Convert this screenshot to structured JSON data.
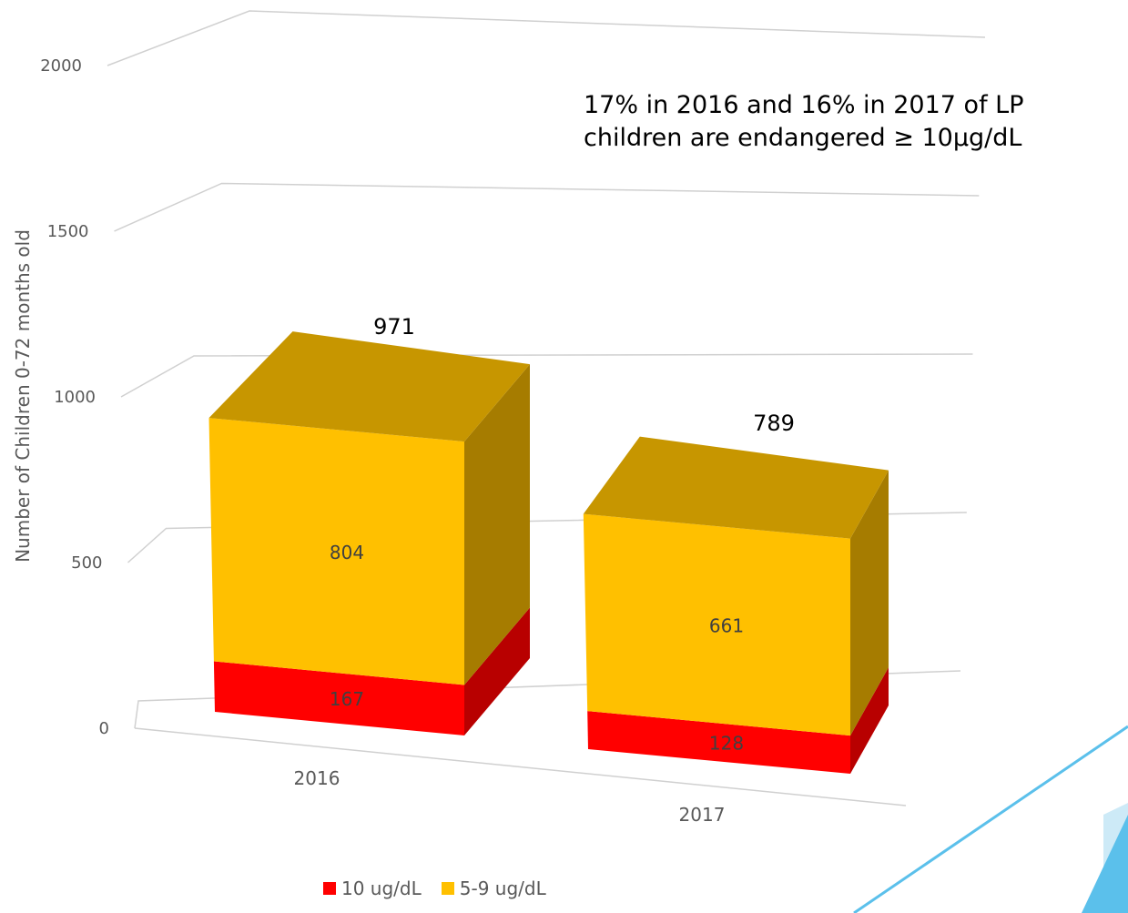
{
  "chart_data": {
    "type": "bar",
    "stacked": true,
    "three_d": true,
    "categories": [
      "2016",
      "2017"
    ],
    "series": [
      {
        "name": "10 ug/dL",
        "values": [
          167,
          128
        ],
        "color": "#ff0000"
      },
      {
        "name": "5-9 ug/dL",
        "values": [
          804,
          661
        ],
        "color": "#ffc000"
      }
    ],
    "totals": [
      971,
      789
    ],
    "ylabel": "Number of Children 0-72 months old",
    "xlabel": "",
    "ylim": [
      0,
      2000
    ],
    "yticks": [
      0,
      500,
      1000,
      1500,
      2000
    ],
    "grid": true,
    "legend_position": "bottom",
    "annotation": "17% in 2016 and 16% in 2017 of LP\nchildren are endangered ≥ 10µg/dL"
  },
  "decoration": {
    "accent_color": "#5bc0eb"
  }
}
